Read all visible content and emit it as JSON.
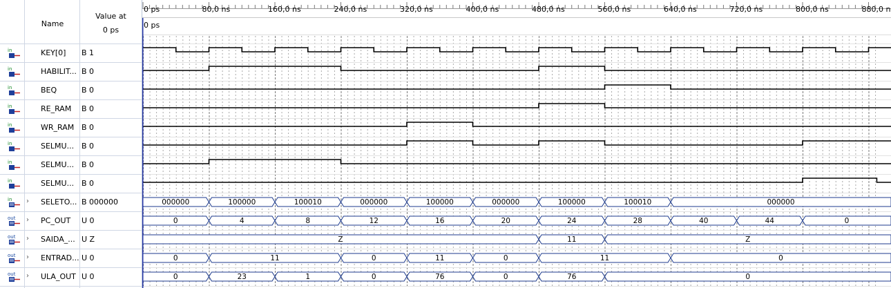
{
  "header": {
    "name_label": "Name",
    "value_label": "Value at",
    "value_time": "0 ps",
    "cursor_label": "0 ps"
  },
  "timeline": {
    "ticks": [
      "0 ps",
      "80,0 ns",
      "160,0 ns",
      "240,0 ns",
      "320,0 ns",
      "400,0 ns",
      "480,0 ns",
      "560,0 ns",
      "640,0 ns",
      "720,0 ns",
      "800,0 ns",
      "880,0 n"
    ],
    "tick_ns": [
      0,
      80,
      160,
      240,
      320,
      400,
      480,
      560,
      640,
      720,
      800,
      880
    ],
    "end_ns": 895
  },
  "signals": [
    {
      "name": "KEY[0]",
      "value": "B 1",
      "dir": "in",
      "kind": "bit",
      "trans": [
        [
          0,
          1
        ],
        [
          40,
          0
        ],
        [
          80,
          1
        ],
        [
          120,
          0
        ],
        [
          160,
          1
        ],
        [
          200,
          0
        ],
        [
          240,
          1
        ],
        [
          280,
          0
        ],
        [
          320,
          1
        ],
        [
          360,
          0
        ],
        [
          400,
          1
        ],
        [
          440,
          0
        ],
        [
          480,
          1
        ],
        [
          520,
          0
        ],
        [
          560,
          1
        ],
        [
          600,
          0
        ],
        [
          640,
          1
        ],
        [
          680,
          0
        ],
        [
          720,
          1
        ],
        [
          760,
          0
        ],
        [
          800,
          1
        ],
        [
          840,
          0
        ],
        [
          880,
          1
        ]
      ]
    },
    {
      "name": "HABILIT...",
      "value": "B 0",
      "dir": "in",
      "kind": "bit",
      "trans": [
        [
          0,
          0
        ],
        [
          80,
          1
        ],
        [
          240,
          0
        ],
        [
          480,
          1
        ],
        [
          560,
          0
        ]
      ]
    },
    {
      "name": "BEQ",
      "value": "B 0",
      "dir": "in",
      "kind": "bit",
      "trans": [
        [
          0,
          0
        ],
        [
          560,
          1
        ],
        [
          640,
          0
        ]
      ]
    },
    {
      "name": "RE_RAM",
      "value": "B 0",
      "dir": "in",
      "kind": "bit",
      "trans": [
        [
          0,
          0
        ],
        [
          480,
          1
        ],
        [
          560,
          0
        ]
      ]
    },
    {
      "name": "WR_RAM",
      "value": "B 0",
      "dir": "in",
      "kind": "bit",
      "trans": [
        [
          0,
          0
        ],
        [
          320,
          1
        ],
        [
          400,
          0
        ]
      ]
    },
    {
      "name": "SELMU...",
      "value": "B 0",
      "dir": "in",
      "kind": "bit",
      "trans": [
        [
          0,
          0
        ],
        [
          320,
          1
        ],
        [
          400,
          0
        ],
        [
          480,
          1
        ],
        [
          560,
          0
        ],
        [
          800,
          1
        ]
      ]
    },
    {
      "name": "SELMU...",
      "value": "B 0",
      "dir": "in",
      "kind": "bit",
      "trans": [
        [
          0,
          0
        ],
        [
          80,
          1
        ],
        [
          240,
          0
        ]
      ]
    },
    {
      "name": "SELMU...",
      "value": "B 0",
      "dir": "in",
      "kind": "bit",
      "trans": [
        [
          0,
          0
        ],
        [
          800,
          1
        ],
        [
          890,
          0
        ]
      ]
    },
    {
      "name": "SELETO...",
      "value": "B 000000",
      "dir": "in",
      "kind": "bus",
      "segs": [
        [
          0,
          80,
          "000000"
        ],
        [
          80,
          160,
          "100000"
        ],
        [
          160,
          240,
          "100010"
        ],
        [
          240,
          320,
          "000000"
        ],
        [
          320,
          400,
          "100000"
        ],
        [
          400,
          480,
          "000000"
        ],
        [
          480,
          560,
          "100000"
        ],
        [
          560,
          640,
          "100010"
        ],
        [
          640,
          895,
          "000000"
        ]
      ]
    },
    {
      "name": "PC_OUT",
      "value": "U 0",
      "dir": "out",
      "kind": "bus",
      "segs": [
        [
          0,
          80,
          "0"
        ],
        [
          80,
          160,
          "4"
        ],
        [
          160,
          240,
          "8"
        ],
        [
          240,
          320,
          "12"
        ],
        [
          320,
          400,
          "16"
        ],
        [
          400,
          480,
          "20"
        ],
        [
          480,
          560,
          "24"
        ],
        [
          560,
          640,
          "28"
        ],
        [
          640,
          720,
          "40"
        ],
        [
          720,
          800,
          "44"
        ],
        [
          800,
          895,
          "0"
        ]
      ]
    },
    {
      "name": "SAIDA_...",
      "value": "U Z",
      "dir": "out",
      "kind": "bus",
      "segs": [
        [
          0,
          480,
          "Z"
        ],
        [
          480,
          560,
          "11"
        ],
        [
          560,
          895,
          "Z"
        ]
      ]
    },
    {
      "name": "ENTRAD...",
      "value": "U 0",
      "dir": "out",
      "kind": "bus",
      "segs": [
        [
          0,
          80,
          "0"
        ],
        [
          80,
          240,
          "11"
        ],
        [
          240,
          320,
          "0"
        ],
        [
          320,
          400,
          "11"
        ],
        [
          400,
          480,
          "0"
        ],
        [
          480,
          640,
          "11"
        ],
        [
          640,
          895,
          "0"
        ]
      ]
    },
    {
      "name": "ULA_OUT",
      "value": "U 0",
      "dir": "out",
      "kind": "bus",
      "segs": [
        [
          0,
          80,
          "0"
        ],
        [
          80,
          160,
          "23"
        ],
        [
          160,
          240,
          "1"
        ],
        [
          240,
          320,
          "0"
        ],
        [
          320,
          400,
          "76"
        ],
        [
          400,
          480,
          "0"
        ],
        [
          480,
          560,
          "76"
        ],
        [
          560,
          895,
          "0"
        ]
      ]
    }
  ],
  "colors": {
    "in_icon": "#1a8a2a",
    "out_icon": "#1a4aa0",
    "bus_line": "#1c3a8c",
    "grid": "#8a8a8a",
    "cursor": "#2a3aa8"
  }
}
